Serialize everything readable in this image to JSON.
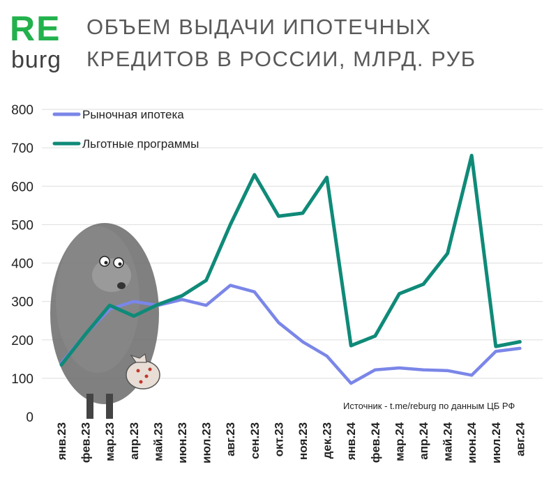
{
  "logo": {
    "brand_top": "RE",
    "brand_bottom": "burg"
  },
  "title_line1": "ОБЪЕМ ВЫДАЧИ ИПОТЕЧНЫХ",
  "title_line2": "КРЕДИТОВ В РОССИИ, МЛРД. РУБ",
  "source": "Источник  - t.me/reburg по данным  ЦБ РФ",
  "colors": {
    "market": "#7b86e8",
    "preferential": "#0f8a78",
    "grid": "#dddddd",
    "logo_green": "#22b14c"
  },
  "chart_data": {
    "type": "line",
    "categories": [
      "янв.23",
      "фев.23",
      "мар.23",
      "апр.23",
      "май.23",
      "июн.23",
      "июл.23",
      "авг.23",
      "сен.23",
      "окт.23",
      "ноя.23",
      "дек.23",
      "янв.24",
      "фев.24",
      "мар.24",
      "апр.24",
      "май.24",
      "июн.24",
      "июл.24",
      "авг.24"
    ],
    "series": [
      {
        "name": "Рыночная ипотека",
        "values": [
          140,
          215,
          280,
          300,
          290,
          305,
          290,
          342,
          325,
          245,
          195,
          158,
          87,
          122,
          127,
          122,
          120,
          108,
          170,
          178
        ]
      },
      {
        "name": "Льготные программы",
        "values": [
          135,
          215,
          290,
          262,
          292,
          315,
          355,
          500,
          630,
          522,
          530,
          623,
          185,
          210,
          320,
          345,
          425,
          680,
          183,
          195
        ]
      }
    ],
    "yticks": [
      0,
      100,
      200,
      300,
      400,
      500,
      600,
      700,
      800
    ],
    "ylim": [
      0,
      800
    ],
    "grid": true,
    "legend": "top-left"
  }
}
